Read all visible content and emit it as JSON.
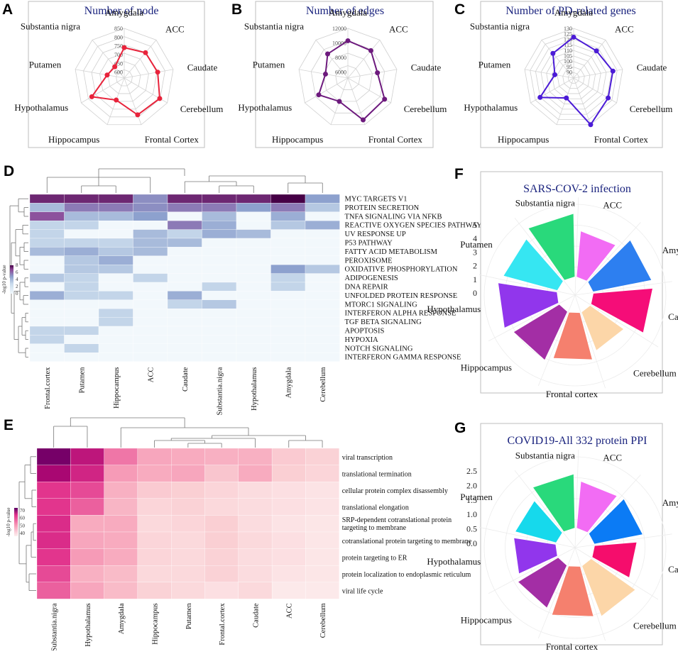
{
  "panels": {
    "A": {
      "letter": "A",
      "title": "Number of node",
      "color": "#e8233b",
      "axes": [
        "Amygdala",
        "ACC",
        "Caudate",
        "Cerebellum",
        "Frontal Cortex",
        "Hippocampus",
        "Hypothalamus",
        "Putamen",
        "Substantia nigra"
      ],
      "ticks": [
        "600",
        "650",
        "700",
        "750",
        "800",
        "850"
      ]
    },
    "B": {
      "letter": "B",
      "title": "Number of edges",
      "color": "#6d1a7d",
      "axes": [
        "Amygdala",
        "ACC",
        "Caudate",
        "Cerebellum",
        "Frontal Cortex",
        "Hippocampus",
        "Hypothalamus",
        "Putamen",
        "Substantia nigra"
      ],
      "ticks": [
        "6000",
        "8000",
        "10000",
        "12000"
      ]
    },
    "C": {
      "letter": "C",
      "title": "Number of PD-related genes",
      "color": "#4b1bd6",
      "axes": [
        "Amygdala",
        "ACC",
        "Caudate",
        "Cerebellum",
        "Frontal Cortex",
        "Hippocampus",
        "Hypothalamus",
        "Putamen",
        "Substantia nigra"
      ],
      "ticks": [
        "90",
        "95",
        "100",
        "105",
        "110",
        "115",
        "120",
        "125",
        "130"
      ]
    },
    "D": {
      "letter": "D",
      "legend_title": "-log10 p-value",
      "legend_ticks": [
        "0",
        "2",
        "4",
        "6",
        "8"
      ]
    },
    "E": {
      "letter": "E",
      "legend_title": "-log10 p-value",
      "legend_ticks": [
        "40",
        "50",
        "60",
        "70"
      ]
    },
    "F": {
      "letter": "F",
      "title": "SARS-COV-2 infection",
      "ticks": [
        "0",
        "1",
        "2",
        "3",
        "4",
        "5"
      ]
    },
    "G": {
      "letter": "G",
      "title": "COVID19-All 332 protein PPI",
      "ticks": [
        "0.0",
        "0.5",
        "1.0",
        "1.5",
        "2.0",
        "2.5"
      ]
    }
  },
  "chart_data": [
    {
      "id": "A",
      "type": "radar",
      "title": "Number of node",
      "categories": [
        "Amygdala",
        "ACC",
        "Caudate",
        "Cerebellum",
        "Frontal Cortex",
        "Hippocampus",
        "Hypothalamus",
        "Putamen",
        "Substantia nigra"
      ],
      "values": [
        740,
        755,
        760,
        800,
        790,
        700,
        780,
        665,
        650
      ],
      "rlim": [
        600,
        850
      ]
    },
    {
      "id": "B",
      "type": "radar",
      "title": "Number of edges",
      "categories": [
        "Amygdala",
        "ACC",
        "Caudate",
        "Cerebellum",
        "Frontal Cortex",
        "Hippocampus",
        "Hypothalamus",
        "Putamen",
        "Substantia nigra"
      ],
      "values": [
        10300,
        10100,
        9300,
        11000,
        11300,
        8600,
        9800,
        8300,
        9500
      ],
      "rlim": [
        6000,
        12000
      ]
    },
    {
      "id": "C",
      "type": "radar",
      "title": "Number of PD-related genes",
      "categories": [
        "Amygdala",
        "ACC",
        "Caudate",
        "Cerebellum",
        "Frontal Cortex",
        "Hippocampus",
        "Hypothalamus",
        "Putamen",
        "Substantia nigra"
      ],
      "values": [
        122,
        117,
        121,
        121,
        130,
        104,
        120,
        102,
        114
      ],
      "rlim": [
        90,
        130
      ]
    },
    {
      "id": "D",
      "type": "heatmap",
      "columns": [
        "Frontal.cortex",
        "Putamen",
        "Hippocampus",
        "ACC",
        "Caudate",
        "Substantia.nigra",
        "Hypothalamus",
        "Amygdala",
        "Cerebellum"
      ],
      "rows": [
        "MYC TARGETS V1",
        "PROTEIN SECRETION",
        "TNFA SIGNALING VIA NFKB",
        "REACTIVE OXYGEN SPECIES PATHWAY",
        "UV RESPONSE UP",
        "P53 PATHWAY",
        "FATTY ACID METABOLISM",
        "PEROXISOME",
        "OXIDATIVE PHOSPHORYLATION",
        "ADIPOGENESIS",
        "DNA REPAIR",
        "UNFOLDED PROTEIN RESPONSE",
        "MTORC1 SIGNALING",
        "INTERFERON ALPHA RESPONSE",
        "TGF BETA SIGNALING",
        "APOPTOSIS",
        "HYPOXIA",
        "NOTCH SIGNALING",
        "INTERFERON GAMMA RESPONSE"
      ],
      "values": [
        [
          7.5,
          7.5,
          7.5,
          4.5,
          7.5,
          7.5,
          7.5,
          9.5,
          4
        ],
        [
          3,
          5,
          5,
          4.5,
          5,
          5,
          4,
          5,
          2.5
        ],
        [
          6,
          3,
          3,
          4,
          0,
          3,
          0,
          3.5,
          0
        ],
        [
          2,
          2,
          0,
          0,
          5,
          3.5,
          0,
          2.5,
          3.5
        ],
        [
          2,
          0,
          0,
          3,
          2,
          3.5,
          3,
          0,
          0
        ],
        [
          2,
          2,
          2,
          3,
          3,
          0,
          0,
          0,
          0
        ],
        [
          3,
          3.5,
          2.5,
          3,
          0,
          0,
          0,
          0,
          0
        ],
        [
          0,
          2.5,
          3.5,
          0,
          0,
          0,
          0,
          0,
          0
        ],
        [
          0,
          2.5,
          2.5,
          0,
          0,
          0,
          0,
          4,
          2.5
        ],
        [
          2.5,
          2,
          0,
          2,
          0,
          0,
          0,
          2,
          0
        ],
        [
          0,
          2,
          0,
          0,
          0,
          2,
          0,
          2,
          0
        ],
        [
          3.5,
          2,
          2,
          0,
          3.5,
          0,
          0,
          0,
          0
        ],
        [
          0,
          0,
          0,
          0,
          2,
          2.5,
          0,
          0,
          0
        ],
        [
          0,
          0,
          2,
          0,
          0,
          0,
          0,
          0,
          0
        ],
        [
          0,
          0,
          2,
          0,
          0,
          0,
          0,
          0,
          0
        ],
        [
          2,
          2,
          0,
          0,
          0,
          0,
          0,
          0,
          0
        ],
        [
          2,
          0,
          0,
          0,
          0,
          0,
          0,
          0,
          0
        ],
        [
          0,
          2,
          0,
          0,
          0,
          0,
          0,
          0,
          0
        ],
        [
          0,
          0,
          0,
          0,
          0,
          0,
          0,
          0,
          0
        ]
      ],
      "vlim": [
        0,
        9
      ]
    },
    {
      "id": "E",
      "type": "heatmap",
      "columns": [
        "Substantia.nigra",
        "Hypothalamus",
        "Amygdala",
        "Hippocampus",
        "Putamen",
        "Frontal.cortex",
        "Caudate",
        "ACC",
        "Cerebellum"
      ],
      "rows": [
        "viral transcription",
        "translational termination",
        "cellular protein complex disassembly",
        "translational elongation",
        "SRP-dependent cotranslational protein targeting to membrane",
        "cotranslational protein targeting to membrane",
        "protein targeting to ER",
        "protein localization to endoplasmic reticulum",
        "viral life cycle"
      ],
      "values": [
        [
          78,
          72,
          62,
          56,
          55,
          54,
          54,
          49,
          47
        ],
        [
          74,
          70,
          58,
          55,
          56,
          50,
          55,
          48,
          46
        ],
        [
          68,
          66,
          54,
          49,
          48,
          46,
          44,
          43,
          42
        ],
        [
          68,
          64,
          53,
          46,
          47,
          45,
          44,
          43,
          42
        ],
        [
          69,
          55,
          55,
          45,
          46,
          48,
          44,
          42,
          41
        ],
        [
          69,
          56,
          55,
          46,
          45,
          48,
          45,
          43,
          41
        ],
        [
          68,
          58,
          55,
          46,
          45,
          47,
          44,
          43,
          41
        ],
        [
          66,
          54,
          52,
          45,
          45,
          47,
          44,
          42,
          41
        ],
        [
          64,
          56,
          52,
          47,
          45,
          43,
          45,
          40,
          40
        ]
      ],
      "vlim": [
        38,
        80
      ]
    },
    {
      "id": "F",
      "type": "polar_bar",
      "title": "SARS-COV-2 infection",
      "categories": [
        "ACC",
        "Amygdala",
        "Caudate",
        "Cerebellum",
        "Frontal cortex",
        "Hippocampus",
        "Hypothalamus",
        "Putamen",
        "Substantia nigra"
      ],
      "values": [
        3.7,
        4.8,
        4.8,
        3.3,
        3.9,
        4.3,
        4.8,
        4.5,
        5.1
      ],
      "rlim": [
        -1.5,
        5.3
      ],
      "colors": [
        "#f26cf4",
        "#2d7ff0",
        "#f50d78",
        "#fcd6a8",
        "#f5806e",
        "#a32ea5",
        "#9136ec",
        "#36e6f2",
        "#29d97b"
      ]
    },
    {
      "id": "G",
      "type": "polar_bar",
      "title": "COVID19-All 332 protein PPI",
      "categories": [
        "ACC",
        "Amygdala",
        "Caudate",
        "Cerebellum",
        "Frontal cortex",
        "Hippocampus",
        "Hypothalamus",
        "Putamen",
        "Substantia nigra"
      ],
      "values": [
        2.0,
        2.1,
        1.8,
        2.3,
        2.2,
        2.0,
        1.8,
        1.8,
        2.3
      ],
      "rlim": [
        -0.85,
        2.75
      ],
      "colors": [
        "#f26cf4",
        "#0b7bf5",
        "#f50d6c",
        "#fcd6a8",
        "#f5806e",
        "#a32ea5",
        "#9136ec",
        "#16d9ec",
        "#29d97b"
      ]
    }
  ]
}
